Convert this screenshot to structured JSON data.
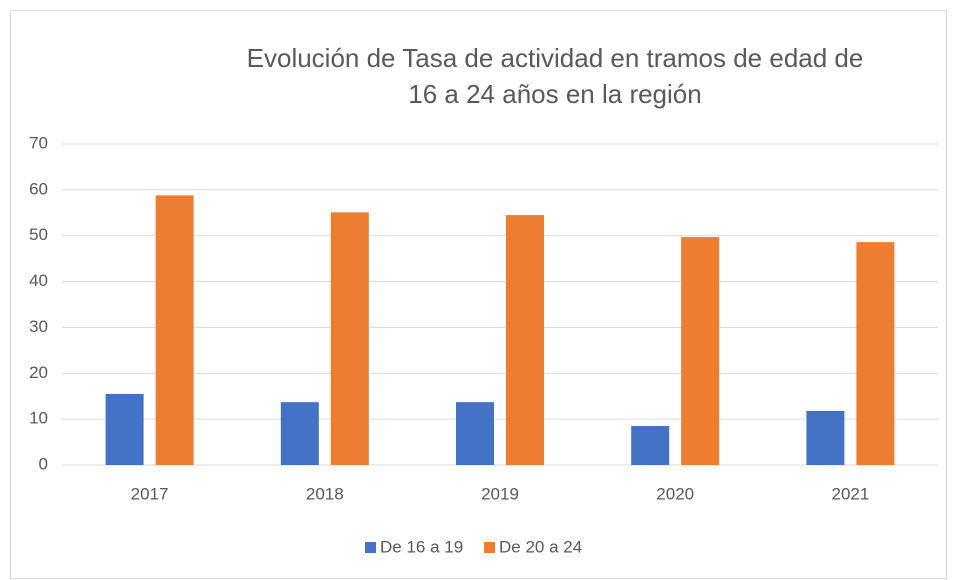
{
  "chart_data": {
    "type": "bar",
    "title": "Evolución de Tasa de actividad en tramos de edad de 16 a 24 años en la región",
    "categories": [
      "2017",
      "2018",
      "2019",
      "2020",
      "2021"
    ],
    "series": [
      {
        "name": "De 16 a 19",
        "color": "#4472c4",
        "values": [
          15.5,
          13.7,
          13.7,
          8.5,
          11.8
        ]
      },
      {
        "name": "De 20 a 24",
        "color": "#ed7d31",
        "values": [
          58.8,
          55.1,
          54.5,
          49.7,
          48.6
        ]
      }
    ],
    "ylim": [
      0,
      70
    ],
    "yticks": [
      0,
      10,
      20,
      30,
      40,
      50,
      60,
      70
    ],
    "grid": true,
    "legend": "bottom"
  }
}
